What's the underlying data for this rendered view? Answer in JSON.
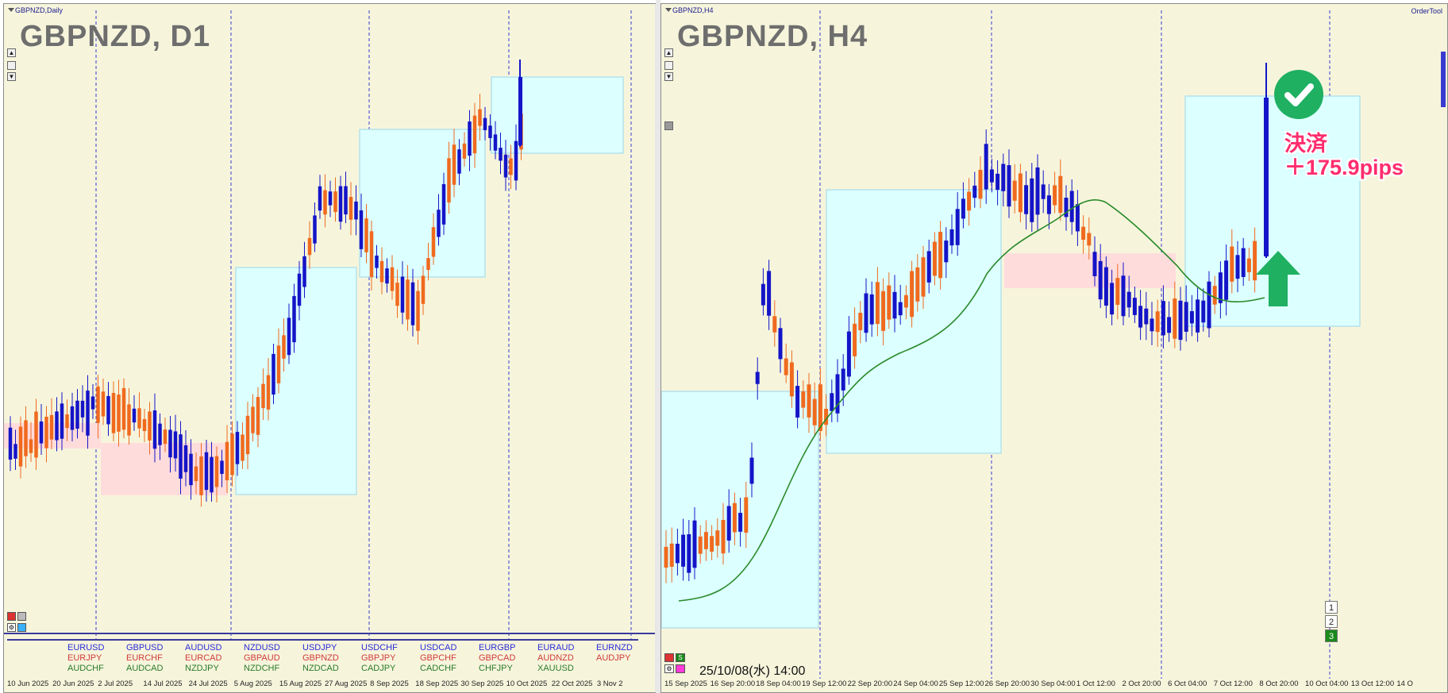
{
  "left": {
    "window_title": "GBPNZD,Daily",
    "symbol_label": "GBPNZD, D1",
    "x_labels": [
      "10 Jun 2025",
      "20 Jun 2025",
      "2 Jul 2025",
      "14 Jul 2025",
      "24 Jul 2025",
      "5 Aug 2025",
      "15 Aug 2025",
      "27 Aug 2025",
      "8 Sep 2025",
      "18 Sep 2025",
      "30 Sep 2025",
      "10 Oct 2025",
      "22 Oct 2025",
      "3 Nov 2"
    ],
    "pairs": [
      [
        "EURUSD",
        "EURJPY",
        "AUDCHF"
      ],
      [
        "GBPUSD",
        "EURCHF",
        "AUDCAD"
      ],
      [
        "AUDUSD",
        "EURCAD",
        "NZDJPY"
      ],
      [
        "NZDUSD",
        "GBPAUD",
        "NZDCHF"
      ],
      [
        "USDJPY",
        "GBPNZD",
        "NZDCAD"
      ],
      [
        "USDCHF",
        "GBPJPY",
        "CADJPY"
      ],
      [
        "USDCAD",
        "GBPCHF",
        "CADCHF"
      ],
      [
        "EURGBP",
        "GBPCAD",
        "CHFJPY"
      ],
      [
        "EURAUD",
        "AUDNZD",
        "XAUUSD"
      ],
      [
        "EURNZD",
        "AUDJPY",
        ""
      ]
    ],
    "controls": [
      "▲",
      "▼"
    ]
  },
  "right": {
    "window_title": "GBPNZD,H4",
    "symbol_label": "GBPNZD, H4",
    "order_tool": "OrderTool",
    "x_labels": [
      "15 Sep 2025",
      "16 Sep 20:00",
      "18 Sep 04:00",
      "19 Sep 12:00",
      "22 Sep 20:00",
      "24 Sep 04:00",
      "25 Sep 12:00",
      "26 Sep 20:00",
      "30 Sep 04:00",
      "1 Oct 12:00",
      "2 Oct 20:00",
      "6 Oct 04:00",
      "7 Oct 12:00",
      "8 Oct 20:00",
      "10 Oct 04:00",
      "13 Oct 12:00",
      "14 O"
    ],
    "datetime": "25/10/08(水) 14:00",
    "num_buttons": [
      "1",
      "2",
      "3"
    ],
    "mini_s": "S"
  },
  "annotation": {
    "line1": "決済",
    "line2": "＋175.9pips",
    "colors": {
      "text": "#ff2d6e",
      "check": "#1fb062",
      "arrow": "#1fb062"
    }
  },
  "colors": {
    "bull": "#1414c8",
    "bear": "#f06a1e",
    "bg": "#f6f5dc",
    "box_blue": "#dcffff",
    "box_red": "#ffdcdc",
    "ma": "#2a8a2a"
  }
}
